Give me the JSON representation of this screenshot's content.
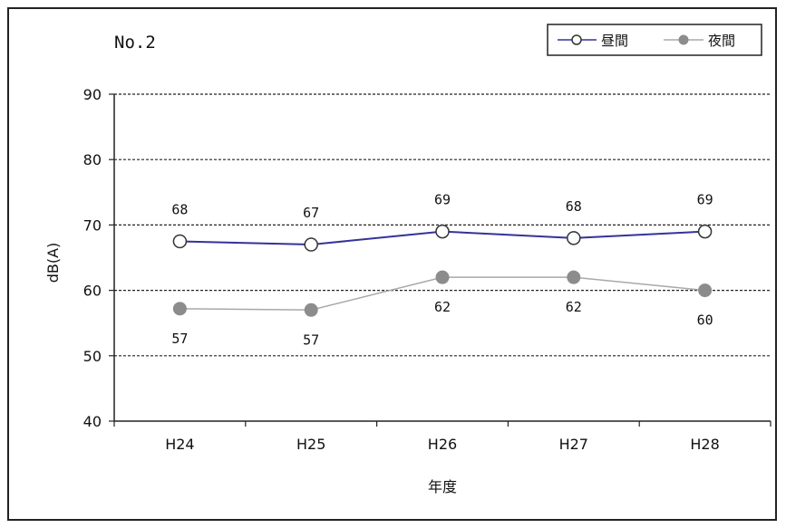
{
  "chart_data": {
    "type": "line",
    "title": "No.2",
    "xlabel": "年度",
    "ylabel": "dB(A)",
    "categories": [
      "H24",
      "H25",
      "H26",
      "H27",
      "H28"
    ],
    "ylim": [
      40,
      90
    ],
    "yticks": [
      40,
      50,
      60,
      70,
      80,
      90
    ],
    "grid": "horizontal dashed",
    "legend": "top-right",
    "series": [
      {
        "name": "昼間",
        "values": [
          67.5,
          67,
          69,
          68,
          69
        ],
        "labels": [
          "68",
          "67",
          "69",
          "68",
          "69"
        ],
        "line_color": "#33339a",
        "marker": "open-circle",
        "label_position": "above"
      },
      {
        "name": "夜間",
        "values": [
          57.2,
          57,
          62,
          62,
          60
        ],
        "labels": [
          "57",
          "57",
          "62",
          "62",
          "60"
        ],
        "line_color": "#a8a8a8",
        "marker_color": "#8c8c8c",
        "marker": "filled-circle",
        "label_position": "below"
      }
    ]
  }
}
